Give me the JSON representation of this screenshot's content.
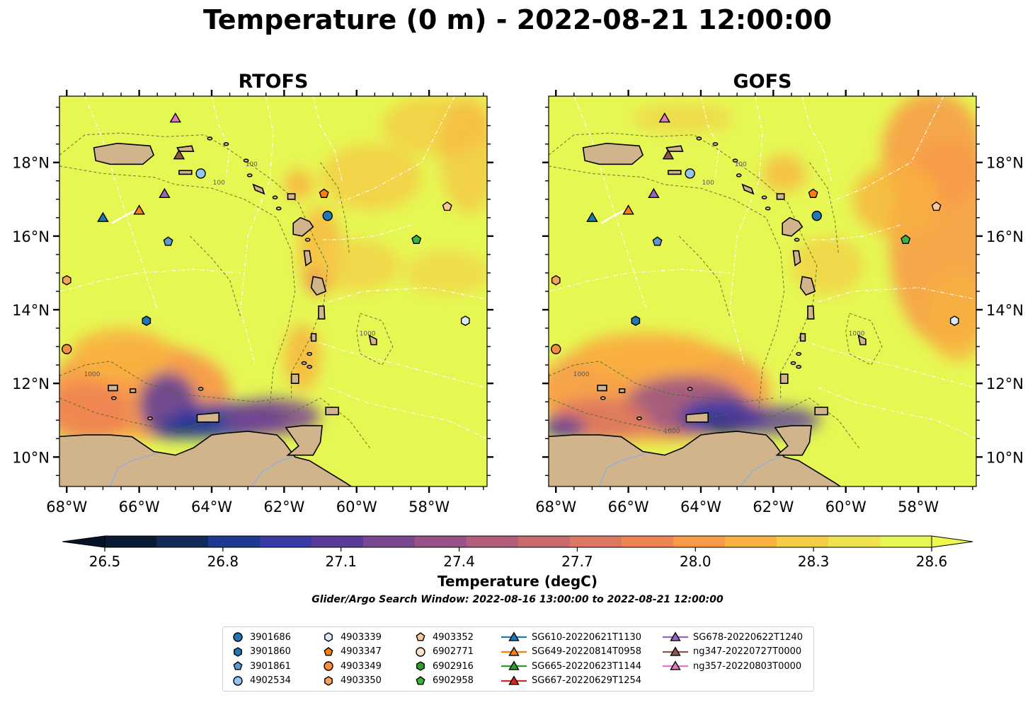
{
  "title": "Temperature (0 m) - 2022-08-21 12:00:00",
  "panels": [
    {
      "title": "RTOFS",
      "lat_labels_side": "left"
    },
    {
      "title": "GOFS",
      "lat_labels_side": "right"
    }
  ],
  "map": {
    "lon_ticks": [
      "68°W",
      "66°W",
      "64°W",
      "62°W",
      "60°W",
      "58°W"
    ],
    "lon_values": [
      -68,
      -66,
      -64,
      -62,
      -60,
      -58
    ],
    "lat_ticks": [
      "18°N",
      "16°N",
      "14°N",
      "12°N",
      "10°N"
    ],
    "lat_values": [
      18,
      16,
      14,
      12,
      10
    ],
    "lon_range": [
      -68.2,
      -56.4
    ],
    "lat_range": [
      9.2,
      19.8
    ],
    "contour_labels": [
      "100",
      "1000"
    ],
    "land_color": "#d2b48c",
    "ocean_warm_color": "#e6f754"
  },
  "colorbar": {
    "label": "Temperature (degC)",
    "tick_labels": [
      "26.5",
      "26.8",
      "27.1",
      "27.4",
      "27.7",
      "28.0",
      "28.3",
      "28.6"
    ],
    "tick_values": [
      26.5,
      26.8,
      27.1,
      27.4,
      27.7,
      28.0,
      28.3,
      28.6
    ],
    "range": [
      26.5,
      28.6
    ],
    "colors": [
      "#0b1a33",
      "#102a5a",
      "#1f3990",
      "#3a3aa6",
      "#5a3b9a",
      "#7a4791",
      "#985286",
      "#b35d7c",
      "#c96a6e",
      "#dd7761",
      "#ef8452",
      "#f89a48",
      "#f9b240",
      "#f5cc46",
      "#eee24e",
      "#e6f754"
    ]
  },
  "search_window": "Glider/Argo Search Window: 2022-08-16 13:00:00 to 2022-08-21 12:00:00",
  "legend": [
    {
      "label": "3901686",
      "marker": "circle",
      "color": "#1f77b4"
    },
    {
      "label": "3901860",
      "marker": "hexagon",
      "color": "#1f77b4"
    },
    {
      "label": "3901861",
      "marker": "pentagon",
      "color": "#5b9ad0"
    },
    {
      "label": "4902534",
      "marker": "circle",
      "color": "#93c5ef"
    },
    {
      "label": "4903339",
      "marker": "hexagon",
      "color": "#dcebfa"
    },
    {
      "label": "4903347",
      "marker": "pentagon",
      "color": "#ff7f0e"
    },
    {
      "label": "4903349",
      "marker": "circle",
      "color": "#f98f3c"
    },
    {
      "label": "4903350",
      "marker": "hexagon",
      "color": "#f7a35c"
    },
    {
      "label": "4903352",
      "marker": "pentagon",
      "color": "#fdc79a"
    },
    {
      "label": "6902771",
      "marker": "circle",
      "color": "#fee3c8"
    },
    {
      "label": "6902916",
      "marker": "hexagon",
      "color": "#2ca02c"
    },
    {
      "label": "6902958",
      "marker": "pentagon",
      "color": "#3cb33c"
    },
    {
      "label": "SG610-20220621T1130",
      "marker": "triangle",
      "color": "#1f77b4"
    },
    {
      "label": "SG649-20220814T0958",
      "marker": "triangle",
      "color": "#ff7f0e"
    },
    {
      "label": "SG665-20220623T1144",
      "marker": "triangle",
      "color": "#2ca02c"
    },
    {
      "label": "SG667-20220629T1254",
      "marker": "triangle",
      "color": "#d62728"
    },
    {
      "label": "SG678-20220622T1240",
      "marker": "triangle",
      "color": "#9467bd"
    },
    {
      "label": "ng347-20220727T0000",
      "marker": "triangle",
      "color": "#8c564b"
    },
    {
      "label": "ng357-20220803T0000",
      "marker": "triangle",
      "color": "#e377c2"
    }
  ],
  "markers": [
    {
      "id": "3901686",
      "lon": -60.8,
      "lat": 16.55,
      "marker": "circle",
      "color": "#1f77b4"
    },
    {
      "id": "3901860",
      "lon": -65.8,
      "lat": 13.7,
      "marker": "hexagon",
      "color": "#1f77b4"
    },
    {
      "id": "3901861",
      "lon": -65.2,
      "lat": 15.85,
      "marker": "pentagon",
      "color": "#5b9ad0"
    },
    {
      "id": "4902534",
      "lon": -64.3,
      "lat": 17.7,
      "marker": "circle",
      "color": "#93c5ef"
    },
    {
      "id": "4903339",
      "lon": -57.0,
      "lat": 13.7,
      "marker": "hexagon",
      "color": "#dcebfa"
    },
    {
      "id": "4903347",
      "lon": -60.9,
      "lat": 17.15,
      "marker": "pentagon",
      "color": "#ff7f0e"
    },
    {
      "id": "4903349",
      "lon": -68.0,
      "lat": 12.93,
      "marker": "circle",
      "color": "#f98f3c"
    },
    {
      "id": "4903350",
      "lon": -68.0,
      "lat": 14.8,
      "marker": "hexagon",
      "color": "#f7a35c"
    },
    {
      "id": "4903352",
      "lon": -57.5,
      "lat": 16.8,
      "marker": "pentagon",
      "color": "#fdc79a"
    },
    {
      "id": "6902958",
      "lon": -58.35,
      "lat": 15.9,
      "marker": "pentagon",
      "color": "#3cb33c"
    },
    {
      "id": "SG610-20220621T1130",
      "lon": -67.0,
      "lat": 16.5,
      "marker": "triangle",
      "color": "#1f77b4"
    },
    {
      "id": "SG649-20220814T0958",
      "lon": -66.0,
      "lat": 16.7,
      "marker": "triangle",
      "color": "#ff7f0e"
    },
    {
      "id": "SG678-20220622T1240",
      "lon": -65.3,
      "lat": 17.15,
      "marker": "triangle",
      "color": "#9467bd"
    },
    {
      "id": "ng347-20220727T0000",
      "lon": -64.9,
      "lat": 18.2,
      "marker": "triangle",
      "color": "#8c564b"
    },
    {
      "id": "ng357-20220803T0000",
      "lon": -65.0,
      "lat": 19.2,
      "marker": "triangle",
      "color": "#e377c2"
    }
  ]
}
